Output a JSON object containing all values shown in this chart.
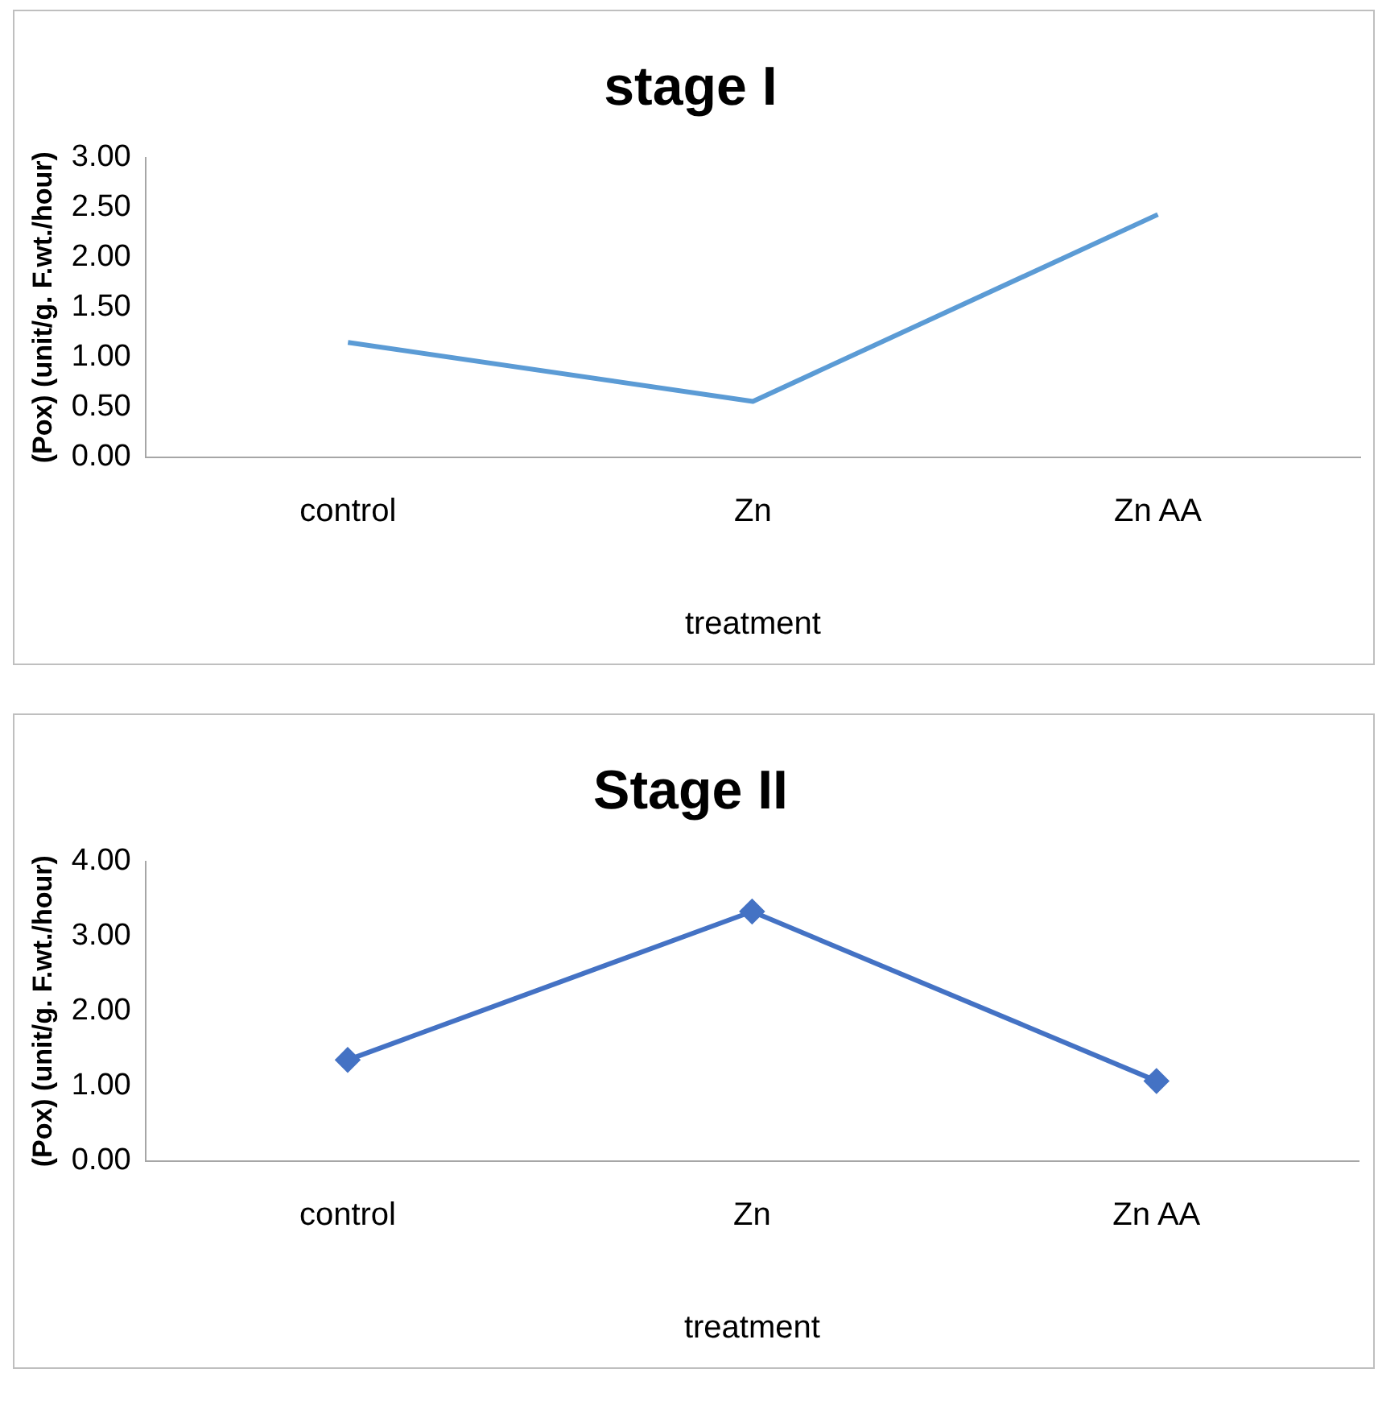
{
  "chart_data": [
    {
      "type": "line",
      "title": "stage I",
      "xlabel": "treatment",
      "ylabel": "(Pox) (unit/g. F.wt./hour)",
      "categories": [
        "control",
        "Zn",
        "Zn AA"
      ],
      "series": [
        {
          "color": "#5b9bd5",
          "values": [
            1.15,
            0.56,
            2.43
          ]
        }
      ],
      "ylim": [
        0,
        3
      ],
      "yticks": [
        {
          "value": 0,
          "label": "0.00"
        },
        {
          "value": 0.5,
          "label": "0.50"
        },
        {
          "value": 1,
          "label": "1.00"
        },
        {
          "value": 1.5,
          "label": "1.50"
        },
        {
          "value": 2,
          "label": "2.00"
        },
        {
          "value": 2.5,
          "label": "2.50"
        },
        {
          "value": 3,
          "label": "3.00"
        }
      ],
      "grid": false,
      "legend": false,
      "marker": "none"
    },
    {
      "type": "line",
      "title": "Stage II",
      "xlabel": "treatment",
      "ylabel": "(Pox) (unit/g. F.wt./hour)",
      "categories": [
        "control",
        "Zn",
        "Zn AA"
      ],
      "series": [
        {
          "color": "#4472c4",
          "values": [
            1.35,
            3.33,
            1.07
          ]
        }
      ],
      "ylim": [
        0,
        4
      ],
      "yticks": [
        {
          "value": 0,
          "label": "0.00"
        },
        {
          "value": 1,
          "label": "1.00"
        },
        {
          "value": 2,
          "label": "2.00"
        },
        {
          "value": 3,
          "label": "3.00"
        },
        {
          "value": 4,
          "label": "4.00"
        }
      ],
      "grid": false,
      "legend": false,
      "marker": "diamond"
    }
  ]
}
